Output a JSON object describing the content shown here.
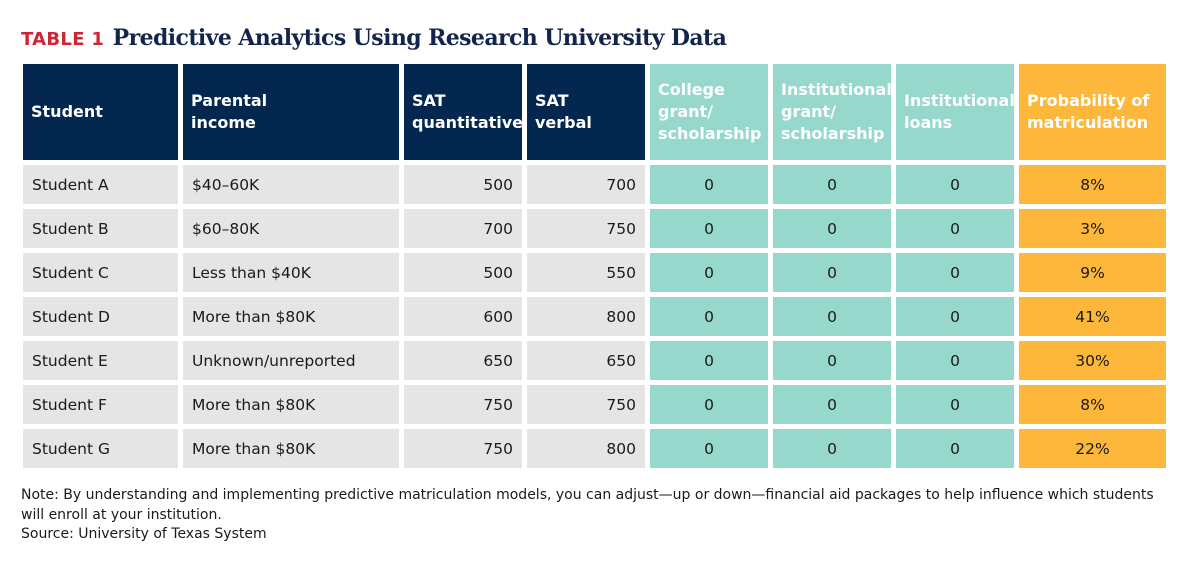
{
  "title": {
    "label": "TABLE 1",
    "text": "Predictive Analytics Using Research University Data"
  },
  "headers": [
    "Student",
    "Parental\nincome",
    "SAT\nquantitative",
    "SAT\nverbal",
    "College\ngrant/\nscholarship",
    "Institutional\ngrant/\nscholarship",
    "Institutional\nloans",
    "Probability of\nmatriculation"
  ],
  "header_colors": {
    "identity": "#04274f",
    "aid": "#97d8cd",
    "outcome": "#fdb73b",
    "body_gray": "#e5e5e5"
  },
  "rows": [
    [
      "Student A",
      "$40–60K",
      "500",
      "700",
      "0",
      "0",
      "0",
      "8%"
    ],
    [
      "Student B",
      "$60–80K",
      "700",
      "750",
      "0",
      "0",
      "0",
      "3%"
    ],
    [
      "Student C",
      "Less than $40K",
      "500",
      "550",
      "0",
      "0",
      "0",
      "9%"
    ],
    [
      "Student D",
      "More than $80K",
      "600",
      "800",
      "0",
      "0",
      "0",
      "41%"
    ],
    [
      "Student E",
      "Unknown/unreported",
      "650",
      "650",
      "0",
      "0",
      "0",
      "30%"
    ],
    [
      "Student F",
      "More than $80K",
      "750",
      "750",
      "0",
      "0",
      "0",
      "8%"
    ],
    [
      "Student G",
      "More than $80K",
      "750",
      "800",
      "0",
      "0",
      "0",
      "22%"
    ]
  ],
  "note": "Note: By understanding and implementing predictive matriculation models, you can adjust—up or down—financial aid packages to help influence which students will enroll at your institution.",
  "source": "Source: University of Texas System"
}
